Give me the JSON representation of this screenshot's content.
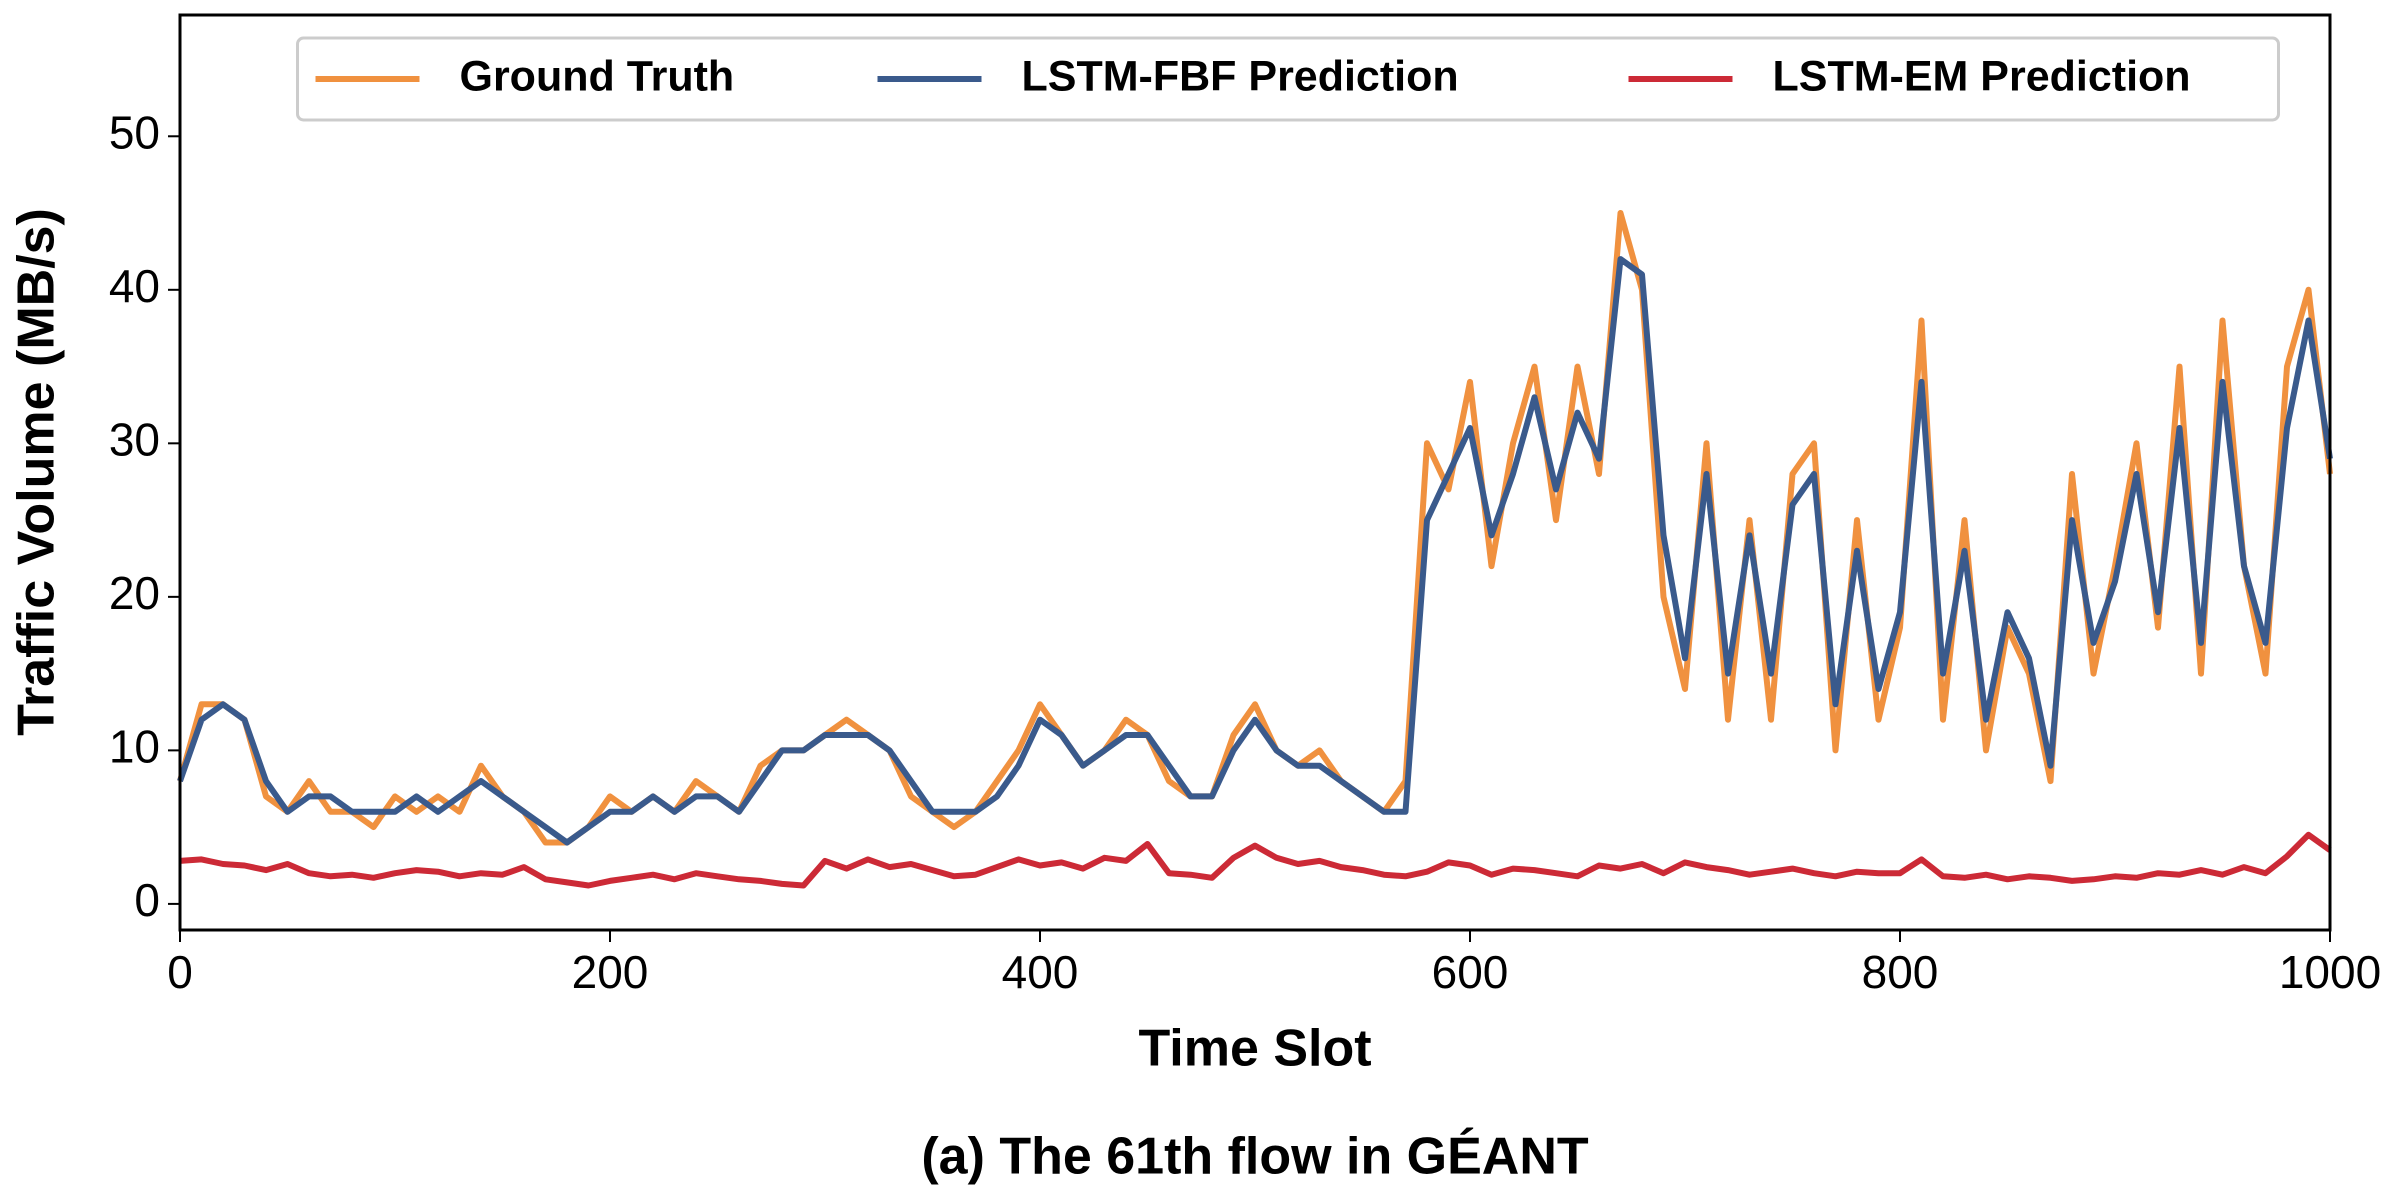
{
  "chart_data": {
    "type": "line",
    "caption": "(a) The 61th flow in GÉANT",
    "x_label": "Time Slot",
    "y_label": "Traffic Volume (MB/s)",
    "x": [
      0,
      10,
      20,
      30,
      40,
      50,
      60,
      70,
      80,
      90,
      100,
      110,
      120,
      130,
      140,
      150,
      160,
      170,
      180,
      190,
      200,
      210,
      220,
      230,
      240,
      250,
      260,
      270,
      280,
      290,
      300,
      310,
      320,
      330,
      340,
      350,
      360,
      370,
      380,
      390,
      400,
      410,
      420,
      430,
      440,
      450,
      460,
      470,
      480,
      490,
      500,
      510,
      520,
      530,
      540,
      550,
      560,
      570,
      580,
      590,
      600,
      610,
      620,
      630,
      640,
      650,
      660,
      670,
      680,
      690,
      700,
      710,
      720,
      730,
      740,
      750,
      760,
      770,
      780,
      790,
      800,
      810,
      820,
      830,
      840,
      850,
      860,
      870,
      880,
      890,
      900,
      910,
      920,
      930,
      940,
      950,
      960,
      970,
      980,
      990,
      1000
    ],
    "series": [
      {
        "name": "Ground Truth",
        "color": "#f0913f",
        "values": [
          8,
          13,
          13,
          12,
          7,
          6,
          8,
          6,
          6,
          5,
          7,
          6,
          7,
          6,
          9,
          7,
          6,
          4,
          4,
          5,
          7,
          6,
          7,
          6,
          8,
          7,
          6,
          9,
          10,
          10,
          11,
          12,
          11,
          10,
          7,
          6,
          5,
          6,
          8,
          10,
          13,
          11,
          9,
          10,
          12,
          11,
          8,
          7,
          7,
          11,
          13,
          10,
          9,
          10,
          8,
          7,
          6,
          8,
          30,
          27,
          34,
          22,
          30,
          35,
          25,
          35,
          28,
          45,
          40,
          20,
          14,
          30,
          12,
          25,
          12,
          28,
          30,
          10,
          25,
          12,
          18,
          38,
          12,
          25,
          10,
          18,
          15,
          8,
          28,
          15,
          22,
          30,
          18,
          35,
          15,
          38,
          22,
          15,
          35,
          40,
          28
        ]
      },
      {
        "name": "LSTM-FBF Prediction",
        "color": "#3a5a8c",
        "values": [
          8,
          12,
          13,
          12,
          8,
          6,
          7,
          7,
          6,
          6,
          6,
          7,
          6,
          7,
          8,
          7,
          6,
          5,
          4,
          5,
          6,
          6,
          7,
          6,
          7,
          7,
          6,
          8,
          10,
          10,
          11,
          11,
          11,
          10,
          8,
          6,
          6,
          6,
          7,
          9,
          12,
          11,
          9,
          10,
          11,
          11,
          9,
          7,
          7,
          10,
          12,
          10,
          9,
          9,
          8,
          7,
          6,
          6,
          25,
          28,
          31,
          24,
          28,
          33,
          27,
          32,
          29,
          42,
          41,
          24,
          16,
          28,
          15,
          24,
          15,
          26,
          28,
          13,
          23,
          14,
          19,
          34,
          15,
          23,
          12,
          19,
          16,
          9,
          25,
          17,
          21,
          28,
          19,
          31,
          17,
          34,
          22,
          17,
          31,
          38,
          29
        ]
      },
      {
        "name": "LSTM-EM Prediction",
        "color": "#cc2a36",
        "values": [
          2.8,
          2.9,
          2.6,
          2.5,
          2.2,
          2.6,
          2.0,
          1.8,
          1.9,
          1.7,
          2.0,
          2.2,
          2.1,
          1.8,
          2.0,
          1.9,
          2.4,
          1.6,
          1.4,
          1.2,
          1.5,
          1.7,
          1.9,
          1.6,
          2.0,
          1.8,
          1.6,
          1.5,
          1.3,
          1.2,
          2.8,
          2.3,
          2.9,
          2.4,
          2.6,
          2.2,
          1.8,
          1.9,
          2.4,
          2.9,
          2.5,
          2.7,
          2.3,
          3.0,
          2.8,
          3.9,
          2.0,
          1.9,
          1.7,
          3.0,
          3.8,
          3.0,
          2.6,
          2.8,
          2.4,
          2.2,
          1.9,
          1.8,
          2.1,
          2.7,
          2.5,
          1.9,
          2.3,
          2.2,
          2.0,
          1.8,
          2.5,
          2.3,
          2.6,
          2.0,
          2.7,
          2.4,
          2.2,
          1.9,
          2.1,
          2.3,
          2.0,
          1.8,
          2.1,
          2.0,
          2.0,
          2.9,
          1.8,
          1.7,
          1.9,
          1.6,
          1.8,
          1.7,
          1.5,
          1.6,
          1.8,
          1.7,
          2.0,
          1.9,
          2.2,
          1.9,
          2.4,
          2.0,
          3.1,
          4.5,
          3.5
        ]
      }
    ],
    "xlim": [
      0,
      1000
    ],
    "xticks": [
      0,
      200,
      400,
      600,
      800,
      1000
    ],
    "ylim": [
      -1.7,
      57.9
    ],
    "yticks": [
      0,
      10,
      20,
      30,
      40,
      50
    ],
    "legend": "upper center"
  }
}
